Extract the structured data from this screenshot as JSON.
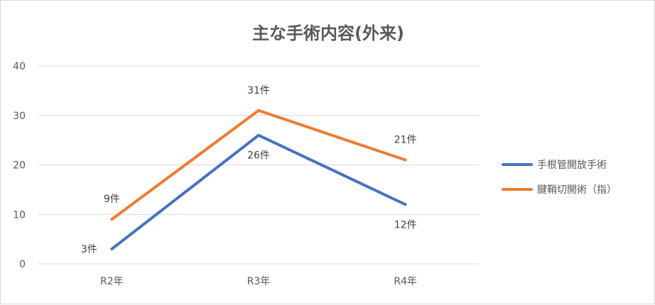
{
  "chart_data": {
    "type": "line",
    "title": "主な手術内容(外来)",
    "categories": [
      "R2年",
      "R3年",
      "R4年"
    ],
    "y_ticks": [
      "0",
      "10",
      "20",
      "30",
      "40"
    ],
    "ylim": [
      0,
      40
    ],
    "grid": true,
    "legend_position": "right",
    "series": [
      {
        "name": "手根管開放手術",
        "color": "#4472C4",
        "values": [
          3,
          26,
          12
        ],
        "labels": [
          "3件",
          "26件",
          "12件"
        ]
      },
      {
        "name": "腱鞘切開術（指）",
        "color": "#ED7D31",
        "values": [
          9,
          31,
          21
        ],
        "labels": [
          "9件",
          "31件",
          "21件"
        ]
      }
    ]
  }
}
